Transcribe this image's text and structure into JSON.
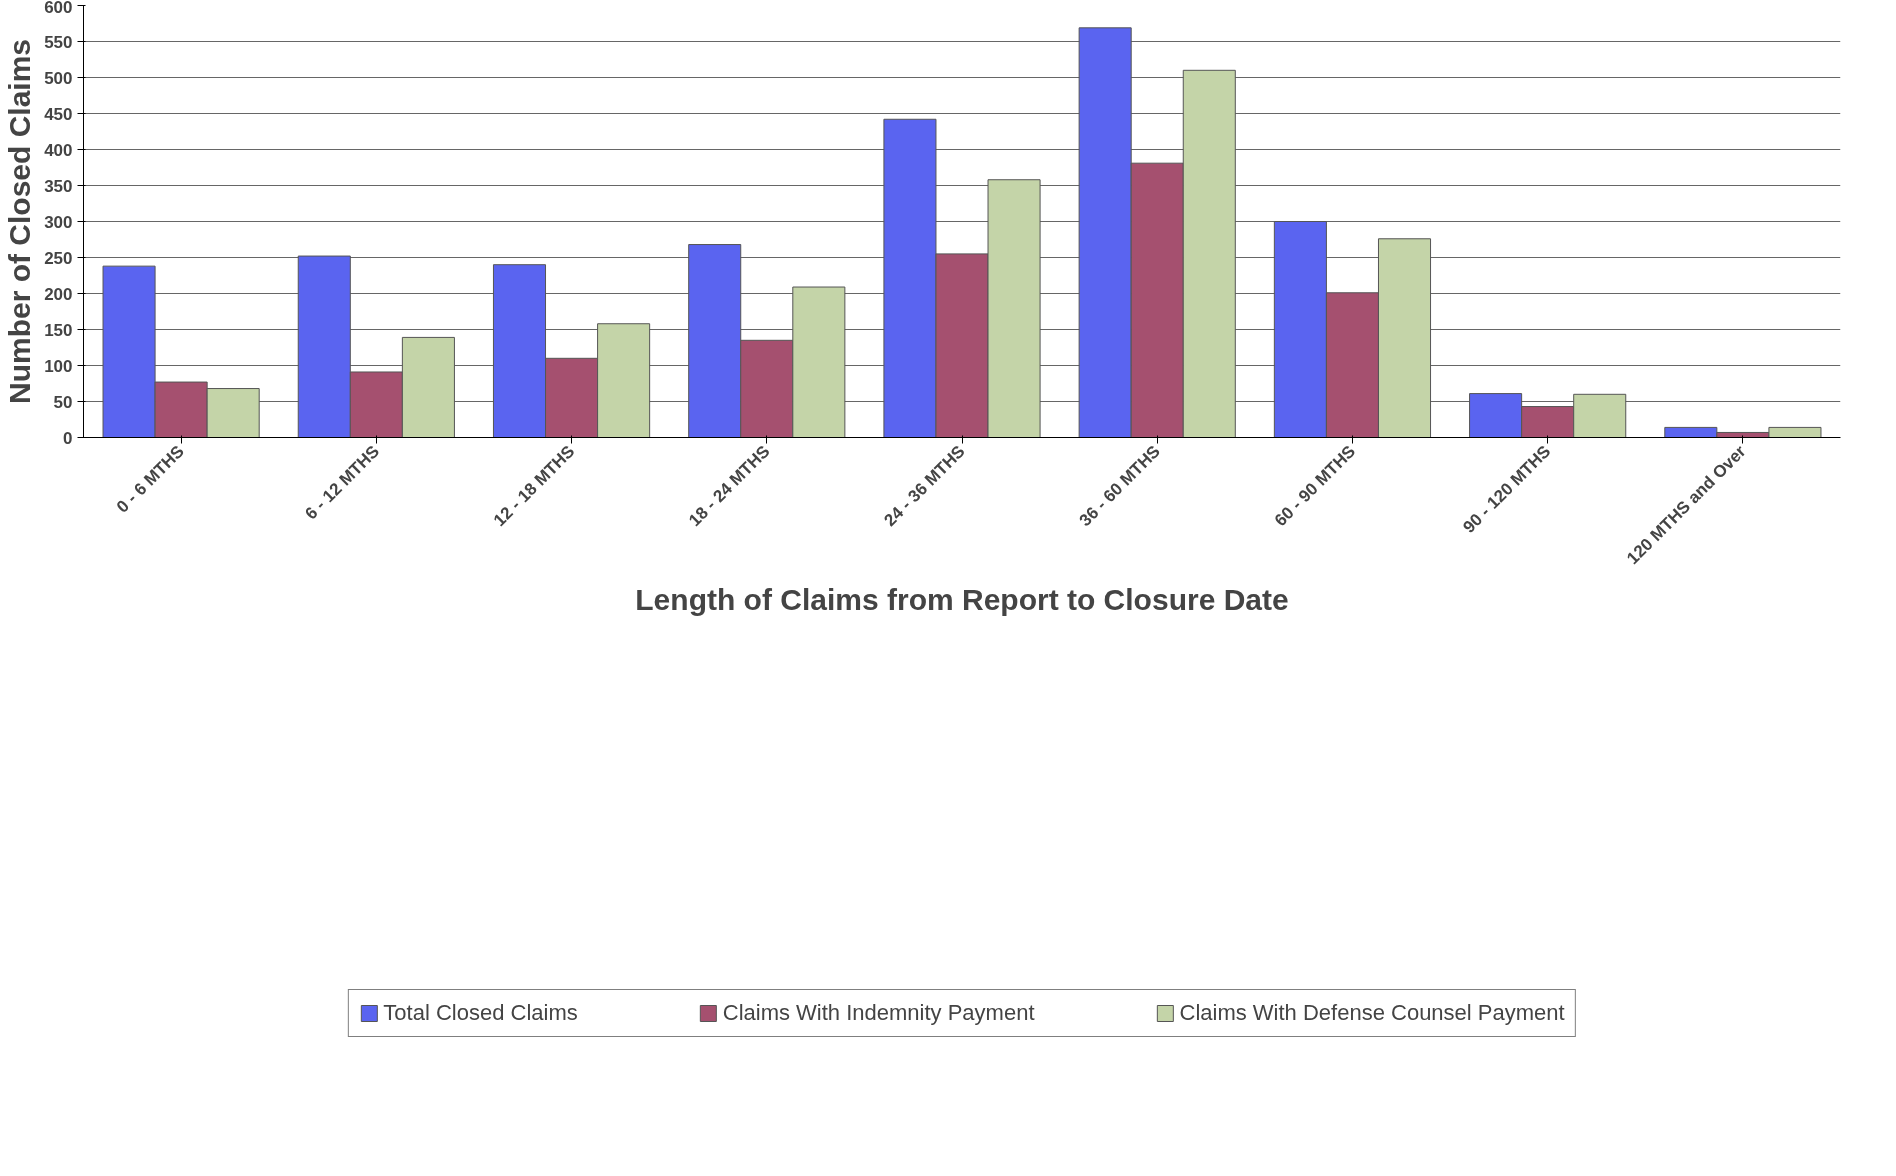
{
  "chart_data": {
    "type": "bar",
    "xlabel": "Length of Claims from Report to Closure Date",
    "ylabel": "Number of Closed Claims",
    "categories": [
      "0 - 6 MTHS",
      "6 - 12 MTHS",
      "12 - 18 MTHS",
      "18 - 24 MTHS",
      "24 - 36 MTHS",
      "36 - 60 MTHS",
      "60 - 90 MTHS",
      "90 - 120 MTHS",
      "120 MTHS and Over"
    ],
    "series": [
      {
        "name": "Total Closed Claims",
        "color": "#5a64f0",
        "values": [
          238,
          252,
          240,
          268,
          442,
          569,
          300,
          61,
          14
        ]
      },
      {
        "name": "Claims With Indemnity Payment",
        "color": "#a5506f",
        "values": [
          77,
          91,
          110,
          135,
          255,
          381,
          201,
          43,
          7
        ]
      },
      {
        "name": "Claims With Defense Counsel Payment",
        "color": "#c4d4a8",
        "values": [
          68,
          139,
          158,
          209,
          358,
          510,
          276,
          60,
          14
        ]
      }
    ],
    "ylim": [
      0,
      600
    ],
    "yticks": [
      0,
      50,
      100,
      150,
      200,
      250,
      300,
      350,
      400,
      450,
      500,
      550,
      600
    ],
    "grid": "y",
    "legend": "bottom"
  }
}
